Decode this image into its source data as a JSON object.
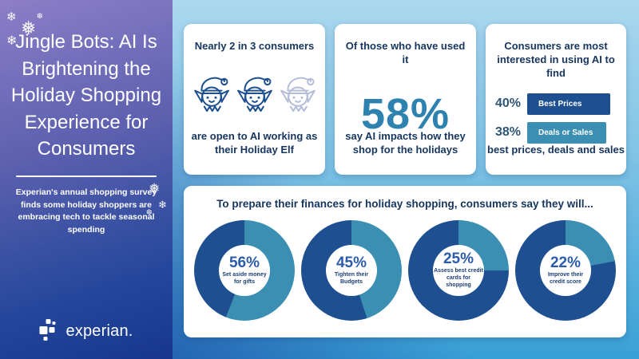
{
  "sidebar": {
    "title": "Jingle Bots: AI Is Brightening the Holiday Shopping Experience for Consumers",
    "subtitle": "Experian's annual shopping survey finds some holiday shoppers are embracing tech to tackle seasonal spending",
    "logo_text": "experian."
  },
  "decor": {
    "flakes": [
      "❄",
      "❅",
      "❄",
      "❆",
      "❅",
      "❄",
      "❆"
    ]
  },
  "cards": {
    "elf_card": {
      "heading": "Nearly 2 in 3 consumers",
      "caption": "are open to AI working as their Holiday Elf"
    },
    "stat_card": {
      "heading": "Of those who have used it",
      "value": "58%",
      "caption": "say AI impacts how they shop for the holidays"
    },
    "bars_card": {
      "heading": "Consumers are most interested in using AI to find",
      "bars": [
        {
          "value": 40,
          "value_label": "40%",
          "label": "Best Prices",
          "color": "#1d4f91"
        },
        {
          "value": 38,
          "value_label": "38%",
          "label": "Deals or Sales",
          "color": "#3a8fb3"
        }
      ],
      "caption": "best prices, deals and sales"
    }
  },
  "donut_panel": {
    "heading": "To prepare their finances for holiday shopping, consumers say they will...",
    "donuts": [
      {
        "value": 56,
        "value_label": "56%",
        "label": "Set aside money for gifts"
      },
      {
        "value": 45,
        "value_label": "45%",
        "label": "Tighten their Budgets"
      },
      {
        "value": 25,
        "value_label": "25%",
        "label": "Assess best credit cards for shopping"
      },
      {
        "value": 22,
        "value_label": "22%",
        "label": "Improve their credit score"
      }
    ]
  },
  "colors": {
    "navy": "#1d4f91",
    "teal": "#3a8fb3",
    "stat_blue": "#2e82b0",
    "heading_navy": "#16355e",
    "donut_value_blue": "#2b5ca9",
    "sidebar_purple": "#8d7ec7",
    "sidebar_deep_blue": "#16378c",
    "bg_light_blue": "#abd8ee",
    "bg_cyan": "#38a0d6",
    "elf_faded": "#b6bdd8"
  },
  "chart_data": [
    {
      "type": "bar",
      "title": "Consumers are most interested in using AI to find",
      "categories": [
        "Best Prices",
        "Deals or Sales"
      ],
      "values": [
        40,
        38
      ],
      "unit": "%",
      "orientation": "horizontal",
      "bar_colors": [
        "#1d4f91",
        "#3a8fb3"
      ]
    },
    {
      "type": "pie",
      "subtype": "donut",
      "title": "To prepare their finances for holiday shopping, consumers say they will...",
      "series": [
        {
          "name": "Set aside money for gifts",
          "value": 56
        },
        {
          "name": "Tighten their Budgets",
          "value": 45
        },
        {
          "name": "Assess best credit cards for shopping",
          "value": 25
        },
        {
          "name": "Improve their credit score",
          "value": 22
        }
      ],
      "unit": "%",
      "slice_color": "#3a8fb3",
      "remainder_color": "#1d4f91"
    }
  ]
}
